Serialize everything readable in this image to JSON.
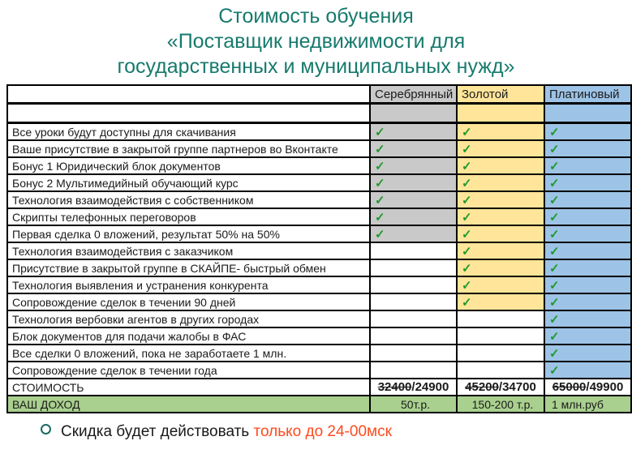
{
  "title": {
    "line1": "Стоимость обучения",
    "line2": "«Поставщик недвижимости для",
    "line3": "государственных и муниципальных нужд»",
    "color": "#177a6d"
  },
  "table": {
    "columns": [
      {
        "label": "Серебрянный",
        "color": "#c9c9c9"
      },
      {
        "label": "Золотой",
        "color": "#ffe599"
      },
      {
        "label": "Платиновый",
        "color": "#9dc3e6"
      }
    ],
    "check_icon": "✓",
    "check_color": "#21992e",
    "rows": [
      {
        "label": "",
        "cells": [
          "colored",
          "colored",
          "colored"
        ]
      },
      {
        "label": "Все уроки будут доступны для скачивания",
        "cells": [
          "check",
          "check",
          "check"
        ]
      },
      {
        "label": "Ваше присутствие в закрытой группе партнеров во Вконтакте",
        "cells": [
          "check",
          "check",
          "check"
        ]
      },
      {
        "label": "Бонус 1 Юридический блок документов",
        "cells": [
          "check",
          "check",
          "check"
        ]
      },
      {
        "label": "Бонус 2 Мультимедийный обучающий курс",
        "cells": [
          "check",
          "check",
          "check"
        ]
      },
      {
        "label": "Технология взаимодействия с собственником",
        "cells": [
          "check",
          "check",
          "check"
        ]
      },
      {
        "label": "Скрипты телефонных переговоров",
        "cells": [
          "check",
          "check",
          "check"
        ]
      },
      {
        "label": "Первая сделка 0 вложений, результат 50% на 50%",
        "cells": [
          "check",
          "check",
          "check"
        ]
      },
      {
        "label": "Технология взаимодействия с заказчиком",
        "cells": [
          "white",
          "check",
          "check"
        ]
      },
      {
        "label": "Присутствие в закрытой группе в СКАЙПЕ- быстрый обмен",
        "cells": [
          "white",
          "check",
          "check"
        ]
      },
      {
        "label": "Технология выявления и устранения конкурента",
        "cells": [
          "white",
          "check",
          "check"
        ]
      },
      {
        "label": "Сопровождение сделок в течении 90 дней",
        "cells": [
          "white",
          "check",
          "check"
        ]
      },
      {
        "label": "Технология вербовки агентов в других городах",
        "cells": [
          "white",
          "white",
          "check"
        ]
      },
      {
        "label": "Блок документов для подачи жалобы в ФАС",
        "cells": [
          "white",
          "white",
          "check"
        ]
      },
      {
        "label": "Все сделки 0 вложений, пока не заработаете 1 млн.",
        "cells": [
          "white",
          "white",
          "check"
        ]
      },
      {
        "label": "Сопровождение сделок в течении года",
        "cells": [
          "white",
          "white",
          "check"
        ]
      }
    ],
    "price_row": {
      "label": "СТОИМОСТЬ",
      "prices": [
        {
          "old": "32400",
          "new": "24900"
        },
        {
          "old": "45200",
          "new": "34700"
        },
        {
          "old": "65000",
          "new": "49900"
        }
      ]
    },
    "income_row": {
      "label": "ВАШ ДОХОД",
      "values": [
        "50т.р.",
        "150-200 т.р.",
        "1 млн.руб"
      ],
      "bg": "#a9d08e"
    }
  },
  "note": {
    "text": "Скидка будет действовать ",
    "highlight": "только до 24-00мск",
    "highlight_color": "#ff4a1e"
  }
}
